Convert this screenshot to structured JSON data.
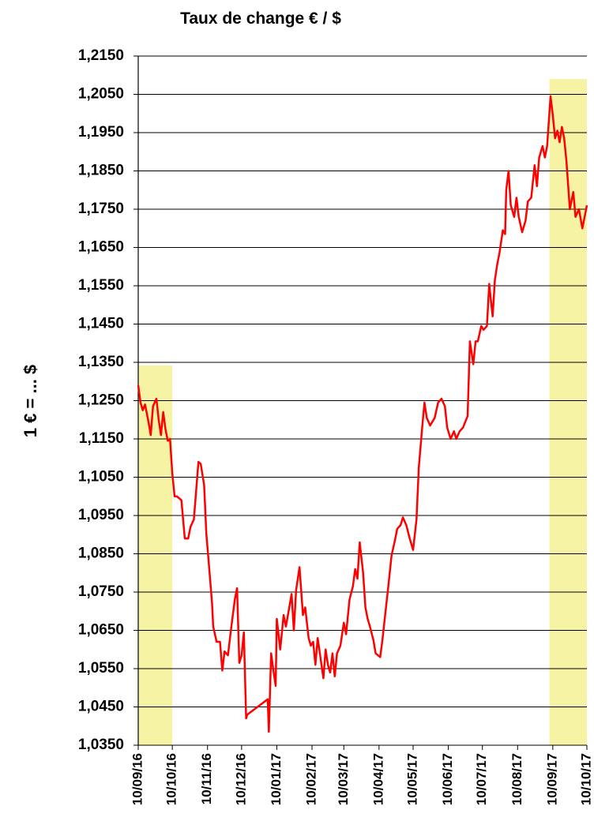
{
  "chart_data": {
    "type": "line",
    "title": "Taux de change € / $",
    "y_label": "1 € = ... $",
    "color": "#ff0000",
    "grid": true,
    "ylim": [
      1.035,
      1.215
    ],
    "yticks": [
      {
        "value": 1.035,
        "label": "1,0350"
      },
      {
        "value": 1.045,
        "label": "1,0450"
      },
      {
        "value": 1.055,
        "label": "1,0550"
      },
      {
        "value": 1.065,
        "label": "1,0650"
      },
      {
        "value": 1.075,
        "label": "1,0750"
      },
      {
        "value": 1.085,
        "label": "1,0850"
      },
      {
        "value": 1.095,
        "label": "1,0950"
      },
      {
        "value": 1.105,
        "label": "1,1050"
      },
      {
        "value": 1.115,
        "label": "1,1150"
      },
      {
        "value": 1.125,
        "label": "1,1250"
      },
      {
        "value": 1.135,
        "label": "1,1350"
      },
      {
        "value": 1.145,
        "label": "1,1450"
      },
      {
        "value": 1.155,
        "label": "1,1550"
      },
      {
        "value": 1.165,
        "label": "1,1650"
      },
      {
        "value": 1.175,
        "label": "1,1750"
      },
      {
        "value": 1.185,
        "label": "1,1850"
      },
      {
        "value": 1.195,
        "label": "1,1950"
      },
      {
        "value": 1.205,
        "label": "1,2050"
      },
      {
        "value": 1.215,
        "label": "1,2150"
      }
    ],
    "xlim": [
      "2016-09-10",
      "2017-10-10"
    ],
    "xticks": [
      {
        "value": "2016-09-10",
        "label": "10/09/16"
      },
      {
        "value": "2016-10-10",
        "label": "10/10/16"
      },
      {
        "value": "2016-11-10",
        "label": "10/11/16"
      },
      {
        "value": "2016-12-10",
        "label": "10/12/16"
      },
      {
        "value": "2017-01-10",
        "label": "10/01/17"
      },
      {
        "value": "2017-02-10",
        "label": "10/02/17"
      },
      {
        "value": "2017-03-10",
        "label": "10/03/17"
      },
      {
        "value": "2017-04-10",
        "label": "10/04/17"
      },
      {
        "value": "2017-05-10",
        "label": "10/05/17"
      },
      {
        "value": "2017-06-10",
        "label": "10/06/17"
      },
      {
        "value": "2017-07-10",
        "label": "10/07/17"
      },
      {
        "value": "2017-08-10",
        "label": "10/08/17"
      },
      {
        "value": "2017-09-10",
        "label": "10/09/17"
      },
      {
        "value": "2017-10-10",
        "label": "10/10/17"
      }
    ],
    "highlights": [
      {
        "x": [
          "2016-09-10",
          "2016-10-10"
        ],
        "y": [
          1.035,
          1.1342
        ],
        "color": "#f6f29a"
      },
      {
        "x": [
          "2017-09-07",
          "2017-10-10"
        ],
        "y": [
          1.035,
          1.209
        ],
        "color": "#f6f29a"
      }
    ],
    "x": [
      "2016-09-10",
      "2016-09-12",
      "2016-09-14",
      "2016-09-16",
      "2016-09-19",
      "2016-09-21",
      "2016-09-23",
      "2016-09-26",
      "2016-09-28",
      "2016-09-30",
      "2016-10-02",
      "2016-10-04",
      "2016-10-06",
      "2016-10-08",
      "2016-10-10",
      "2016-10-12",
      "2016-10-14",
      "2016-10-18",
      "2016-10-21",
      "2016-10-24",
      "2016-10-26",
      "2016-10-29",
      "2016-11-02",
      "2016-11-04",
      "2016-11-07",
      "2016-11-09",
      "2016-11-11",
      "2016-11-14",
      "2016-11-15",
      "2016-11-18",
      "2016-11-21",
      "2016-11-23",
      "2016-11-25",
      "2016-11-28",
      "2016-12-01",
      "2016-12-04",
      "2016-12-06",
      "2016-12-08",
      "2016-12-10",
      "2016-12-12",
      "2016-12-14",
      "2016-12-15",
      "2017-01-02",
      "2017-01-03",
      "2017-01-05",
      "2017-01-07",
      "2017-01-09",
      "2017-01-10",
      "2017-01-13",
      "2017-01-16",
      "2017-01-18",
      "2017-01-21",
      "2017-01-23",
      "2017-01-25",
      "2017-01-27",
      "2017-01-30",
      "2017-02-02",
      "2017-02-04",
      "2017-02-07",
      "2017-02-09",
      "2017-02-11",
      "2017-02-13",
      "2017-02-15",
      "2017-02-20",
      "2017-02-22",
      "2017-02-24",
      "2017-02-26",
      "2017-02-28",
      "2017-03-02",
      "2017-03-04",
      "2017-03-07",
      "2017-03-10",
      "2017-03-12",
      "2017-03-15",
      "2017-03-18",
      "2017-03-20",
      "2017-03-22",
      "2017-03-24",
      "2017-03-27",
      "2017-03-29",
      "2017-03-31",
      "2017-04-02",
      "2017-04-05",
      "2017-04-07",
      "2017-04-11",
      "2017-04-13",
      "2017-04-15",
      "2017-04-18",
      "2017-04-21",
      "2017-04-24",
      "2017-04-26",
      "2017-04-29",
      "2017-05-01",
      "2017-05-04",
      "2017-05-07",
      "2017-05-10",
      "2017-05-13",
      "2017-05-15",
      "2017-05-18",
      "2017-05-20",
      "2017-05-22",
      "2017-05-25",
      "2017-05-29",
      "2017-06-01",
      "2017-06-04",
      "2017-06-07",
      "2017-06-09",
      "2017-06-12",
      "2017-06-15",
      "2017-06-17",
      "2017-06-20",
      "2017-06-23",
      "2017-06-27",
      "2017-06-29",
      "2017-07-02",
      "2017-07-04",
      "2017-07-06",
      "2017-07-09",
      "2017-07-11",
      "2017-07-14",
      "2017-07-16",
      "2017-07-19",
      "2017-07-21",
      "2017-07-23",
      "2017-07-25",
      "2017-07-28",
      "2017-07-30",
      "2017-07-31",
      "2017-08-02",
      "2017-08-04",
      "2017-08-07",
      "2017-08-09",
      "2017-08-11",
      "2017-08-14",
      "2017-08-17",
      "2017-08-19",
      "2017-08-22",
      "2017-08-25",
      "2017-08-27",
      "2017-08-29",
      "2017-09-01",
      "2017-09-03",
      "2017-09-05",
      "2017-09-08",
      "2017-09-10",
      "2017-09-12",
      "2017-09-14",
      "2017-09-16",
      "2017-09-18",
      "2017-09-20",
      "2017-09-22",
      "2017-09-25",
      "2017-09-28",
      "2017-09-30",
      "2017-10-03",
      "2017-10-06",
      "2017-10-08",
      "2017-10-10"
    ],
    "values": [
      1.129,
      1.1245,
      1.1225,
      1.124,
      1.1195,
      1.116,
      1.1235,
      1.1255,
      1.12,
      1.116,
      1.122,
      1.1175,
      1.1145,
      1.115,
      1.106,
      1.1,
      1.1,
      1.099,
      1.089,
      1.089,
      1.092,
      1.094,
      1.109,
      1.1085,
      1.103,
      1.09,
      1.083,
      1.072,
      1.066,
      1.062,
      1.062,
      1.0545,
      1.0595,
      1.0585,
      1.066,
      1.073,
      1.076,
      1.0565,
      1.0585,
      1.0645,
      1.042,
      1.043,
      1.047,
      1.0385,
      1.059,
      1.0545,
      1.0505,
      1.068,
      1.06,
      1.069,
      1.066,
      1.071,
      1.0745,
      1.065,
      1.0755,
      1.0815,
      1.069,
      1.071,
      1.063,
      1.061,
      1.062,
      1.056,
      1.063,
      1.0525,
      1.06,
      1.056,
      1.054,
      1.059,
      1.053,
      1.059,
      1.061,
      1.067,
      1.064,
      1.073,
      1.0765,
      1.081,
      1.0785,
      1.088,
      1.08,
      1.071,
      1.068,
      1.066,
      1.0625,
      1.059,
      1.058,
      1.0625,
      1.068,
      1.076,
      1.0845,
      1.0885,
      1.0915,
      1.0925,
      1.0945,
      1.0925,
      1.089,
      1.086,
      1.094,
      1.1075,
      1.118,
      1.1245,
      1.1205,
      1.1185,
      1.1205,
      1.1245,
      1.1255,
      1.1235,
      1.118,
      1.115,
      1.117,
      1.115,
      1.117,
      1.118,
      1.121,
      1.1405,
      1.1345,
      1.1405,
      1.1405,
      1.1445,
      1.1435,
      1.1445,
      1.1555,
      1.147,
      1.1565,
      1.1605,
      1.1635,
      1.1695,
      1.1685,
      1.18,
      1.185,
      1.176,
      1.173,
      1.178,
      1.173,
      1.169,
      1.172,
      1.177,
      1.178,
      1.1865,
      1.181,
      1.1885,
      1.1915,
      1.1885,
      1.1915,
      1.2045,
      1.1995,
      1.1935,
      1.1955,
      1.1925,
      1.1965,
      1.1935,
      1.1875,
      1.175,
      1.1795,
      1.173,
      1.175,
      1.17,
      1.173,
      1.176
    ]
  }
}
